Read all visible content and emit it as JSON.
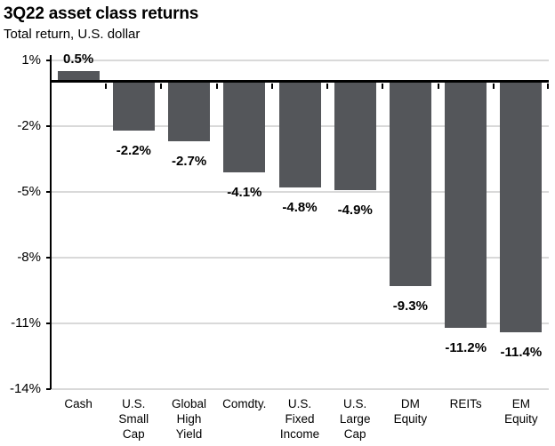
{
  "header": {
    "title": "3Q22 asset class returns",
    "subtitle": "Total return, U.S. dollar"
  },
  "chart_data": {
    "type": "bar",
    "title": "3Q22 asset class returns",
    "subtitle": "Total return, U.S. dollar",
    "categories": [
      "Cash",
      "U.S.\nSmall\nCap",
      "Global\nHigh\nYield",
      "Comdty.",
      "U.S.\nFixed\nIncome",
      "U.S.\nLarge\nCap",
      "DM\nEquity",
      "REITs",
      "EM\nEquity"
    ],
    "values": [
      0.5,
      -2.2,
      -2.7,
      -4.1,
      -4.8,
      -4.9,
      -9.3,
      -11.2,
      -11.4
    ],
    "value_labels": [
      "0.5%",
      "-2.2%",
      "-2.7%",
      "-4.1%",
      "-4.8%",
      "-4.9%",
      "-9.3%",
      "-11.2%",
      "-11.4%"
    ],
    "y_ticks": [
      1,
      -2,
      -5,
      -8,
      -11,
      -14
    ],
    "y_tick_labels": [
      "1%",
      "-2%",
      "-5%",
      "-8%",
      "-11%",
      "-14%"
    ],
    "ylim": [
      -14,
      1
    ],
    "grid": true,
    "legend_position": "none",
    "xlabel": "",
    "ylabel": "",
    "colors": {
      "bar": "#54565A",
      "gridline": "#D9D9D9",
      "axis": "#000000",
      "text": "#000000"
    }
  }
}
